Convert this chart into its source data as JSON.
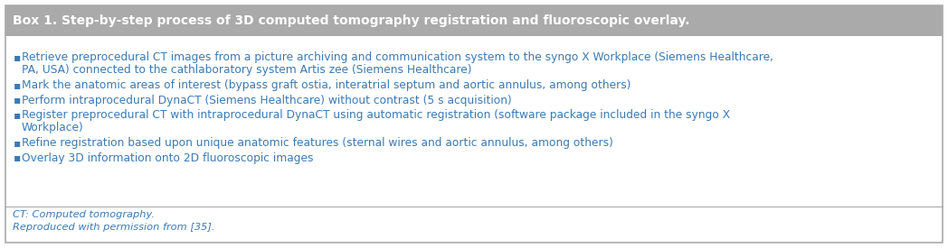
{
  "title": "Box 1. Step-by-step process of 3D computed tomography registration and fluoroscopic overlay.",
  "title_bg_color": "#aaaaaa",
  "title_text_color": "#ffffff",
  "body_bg_color": "#ffffff",
  "border_color": "#aaaaaa",
  "bullet_text_color": "#3a7ab5",
  "footer_text_color": "#3a7ab5",
  "bullet_items": [
    "Retrieve preprocedural CT images from a picture archiving and communication system to the syngo X Workplace (Siemens Healthcare,\nPA, USA) connected to the cathlaboratory system Artis zee (Siemens Healthcare)",
    "Mark the anatomic areas of interest (bypass graft ostia, interatrial septum and aortic annulus, among others)",
    "Perform intraprocedural DynaCT (Siemens Healthcare) without contrast (5 s acquisition)",
    "Register preprocedural CT with intraprocedural DynaCT using automatic registration (software package included in the syngo X\nWorkplace)",
    "Refine registration based upon unique anatomic features (sternal wires and aortic annulus, among others)",
    "Overlay 3D information onto 2D fluoroscopic images"
  ],
  "footer_line1": "CT: Computed tomography.",
  "footer_line2": "Reproduced with permission from [35].",
  "title_fontsize": 10.0,
  "body_fontsize": 8.8,
  "footer_fontsize": 8.2
}
